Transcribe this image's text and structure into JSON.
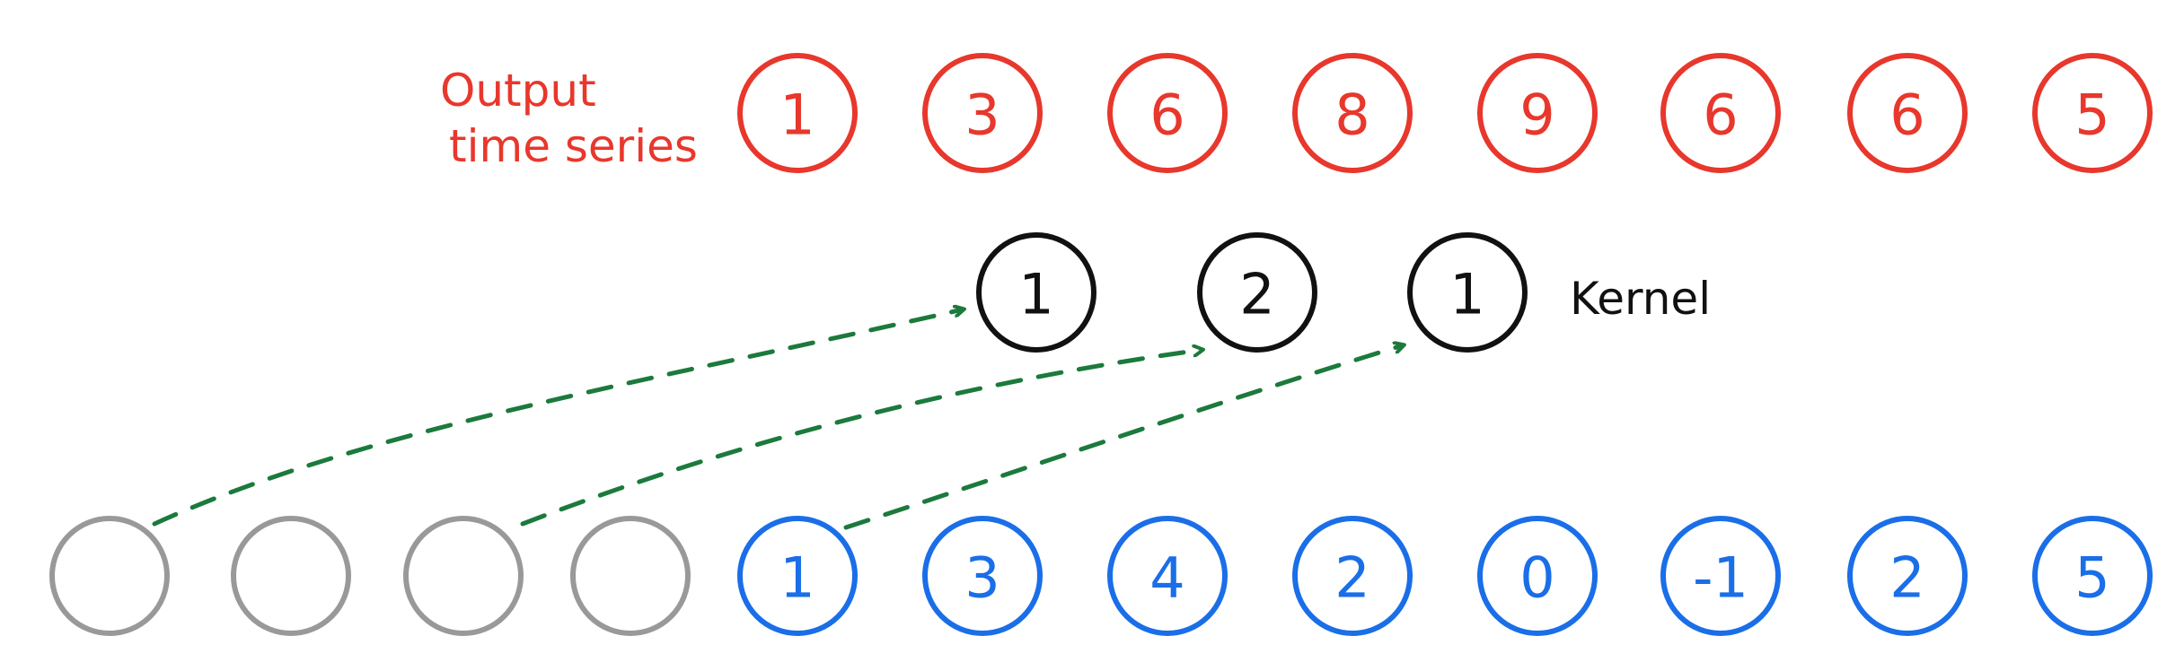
{
  "colors": {
    "output": "#e8372c",
    "kernel": "#111111",
    "input": "#1a6ee8",
    "padding": "#999999",
    "arrow": "#1b7a3c"
  },
  "output": {
    "label_line1": "Output",
    "label_line2": "time series",
    "values": [
      "1",
      "3",
      "6",
      "8",
      "9",
      "6",
      "6",
      "5"
    ]
  },
  "kernel": {
    "label": "Kernel",
    "values": [
      "1",
      "2",
      "1"
    ]
  },
  "input": {
    "padding_values": [
      "",
      "",
      "",
      ""
    ],
    "values": [
      "1",
      "3",
      "4",
      "2",
      "0",
      "-1",
      "2",
      "5"
    ]
  }
}
